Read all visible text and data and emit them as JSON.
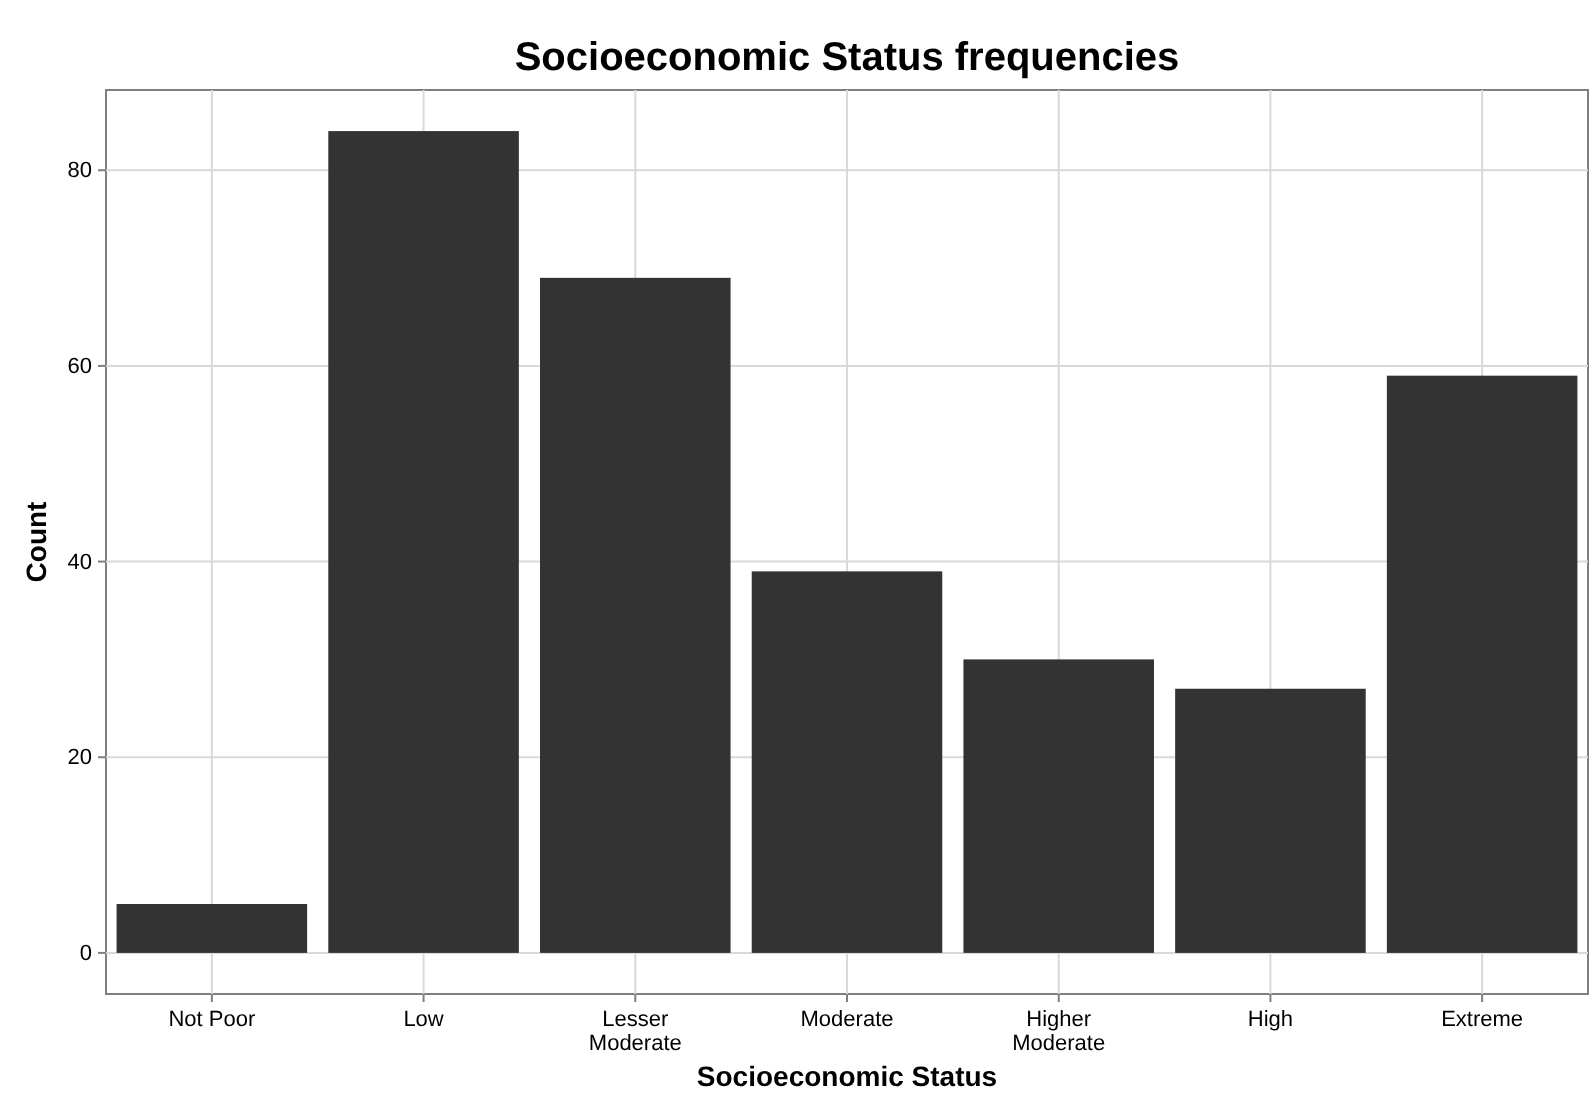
{
  "chart_data": {
    "type": "bar",
    "title": "Socioeconomic Status frequencies",
    "xlabel": "Socioeconomic Status",
    "ylabel": "Count",
    "categories": [
      "Not Poor",
      "Low",
      "Lesser\nModerate",
      "Moderate",
      "Higher\nModerate",
      "High",
      "Extreme"
    ],
    "values": [
      5,
      84,
      69,
      39,
      30,
      27,
      59
    ],
    "color": "#333333",
    "ylim": [
      -4.2,
      88.2
    ],
    "yticks": [
      0,
      20,
      40,
      60,
      80
    ],
    "grid": true
  }
}
